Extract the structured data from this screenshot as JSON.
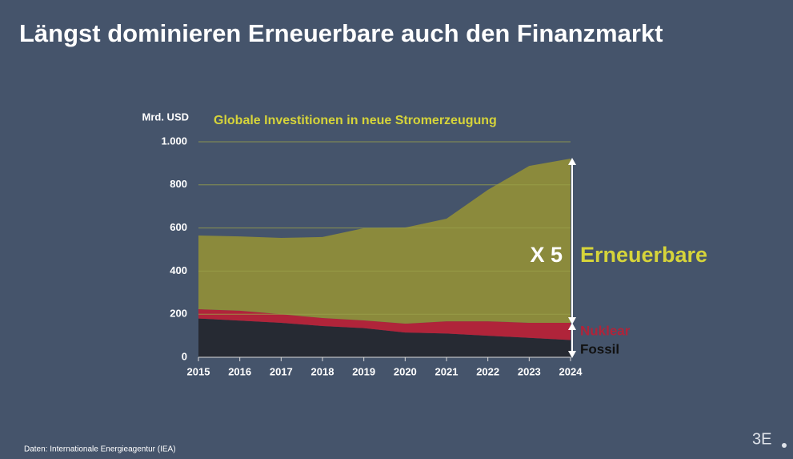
{
  "title": "Längst dominieren Erneuerbare auch den Finanzmarkt",
  "source": "Daten: Internationale Energieagentur (IEA)",
  "logo": "3E",
  "chart_data": {
    "type": "stacked_area",
    "title": "Globale Investitionen in neue Stromerzeugung",
    "y_label": "Mrd.  USD",
    "annotation": "X 5",
    "x": [
      2015,
      2016,
      2017,
      2018,
      2019,
      2020,
      2021,
      2022,
      2023,
      2024
    ],
    "xlim": [
      2015,
      2024
    ],
    "xticks": [
      2015,
      2016,
      2017,
      2018,
      2019,
      2020,
      2021,
      2022,
      2023,
      2024
    ],
    "ylim": [
      0,
      1000
    ],
    "yticks": [
      0,
      200,
      400,
      600,
      800,
      {
        "value": 1000,
        "label": "1.000"
      }
    ],
    "grid": true,
    "series": [
      {
        "name": "Fossil",
        "color": "#262a33",
        "label_color": "#111111",
        "values": [
          180,
          170,
          160,
          145,
          135,
          115,
          110,
          100,
          90,
          80
        ]
      },
      {
        "name": "Nuklear",
        "color": "#b0243a",
        "label_color": "#b0243a",
        "values": [
          43,
          46,
          40,
          37,
          36,
          41,
          57,
          67,
          70,
          80
        ]
      },
      {
        "name": "Erneuerbare",
        "color": "#8b8a3c",
        "label_color": "#d6d43a",
        "values": [
          342,
          345,
          354,
          376,
          428,
          446,
          476,
          610,
          728,
          762
        ]
      }
    ]
  }
}
